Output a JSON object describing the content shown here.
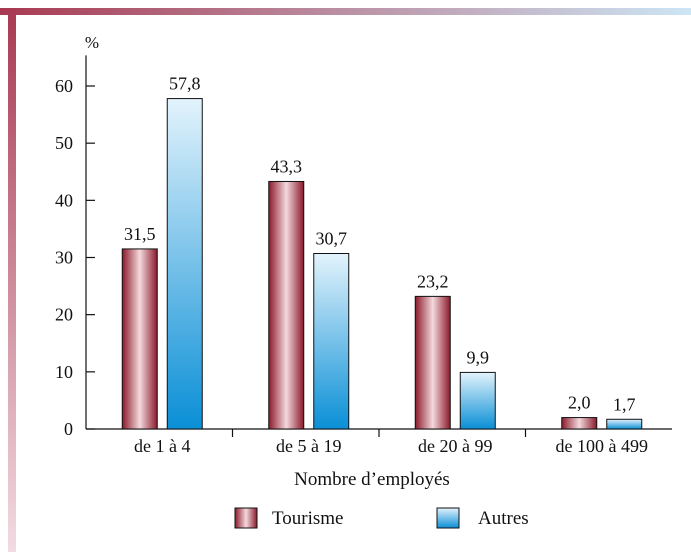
{
  "chart_data": {
    "type": "bar",
    "ylabel": "%",
    "xlabel": "Nombre d’employés",
    "categories": [
      "de 1 à 4",
      "de 5 à 19",
      "de 20 à 99",
      "de 100 à 499"
    ],
    "series": [
      {
        "name": "Tourisme",
        "values": [
          31.5,
          43.3,
          23.2,
          2.0
        ],
        "labels": [
          "31,5",
          "43,3",
          "23,2",
          "2,0"
        ],
        "color": "#8b1a2b"
      },
      {
        "name": "Autres",
        "values": [
          57.8,
          30.7,
          9.9,
          1.7
        ],
        "labels": [
          "57,8",
          "30,7",
          "9,9",
          "1,7"
        ],
        "color": "#0a8fd6"
      }
    ],
    "ylim": [
      0,
      65
    ],
    "yticks": [
      0,
      10,
      20,
      30,
      40,
      50,
      60
    ],
    "grid": false,
    "legend": "bottom-center"
  },
  "colors": {
    "top_border_start": "#a83a52",
    "top_border_end": "#cde6f5",
    "left_border_start": "#a83a52",
    "left_border_end": "#f2dbe2"
  }
}
